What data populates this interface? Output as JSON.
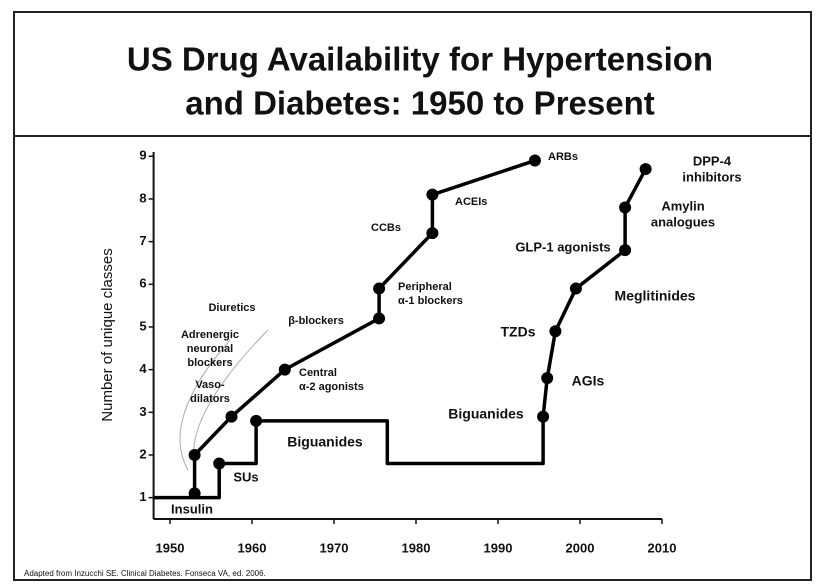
{
  "chart_data": {
    "type": "line",
    "title": [
      "US Drug Availability for Hypertension",
      "and Diabetes: 1950 to Present"
    ],
    "y_label": "Number of unique classes",
    "source": "Adapted from Inzucchi SE. Clinical Diabetes. Fonseca VA, ed. 2006.",
    "xlim": [
      1948,
      2010
    ],
    "xticks": [
      1950,
      1960,
      1970,
      1980,
      1990,
      2000,
      2010
    ],
    "ylim": [
      0.5,
      9.1
    ],
    "yticks": [
      1,
      2,
      3,
      4,
      5,
      6,
      7,
      8,
      9
    ],
    "color": "#000000",
    "series": [
      {
        "x": [
          1953,
          1953,
          1957.5,
          1964,
          1975.5,
          1975.5,
          1982,
          1982,
          1994.5
        ],
        "values": [
          1.1,
          2,
          2.9,
          4,
          5.2,
          5.9,
          7.2,
          8.1,
          8.9
        ],
        "markers": true,
        "line": true
      },
      {
        "x": [
          1948,
          1956,
          1956,
          1960.5,
          1960.5,
          1976.5,
          1976.5,
          1995.5,
          1995.5
        ],
        "values": [
          1,
          1,
          1.8,
          1.8,
          2.8,
          2.8,
          1.8,
          1.8,
          2.9
        ],
        "markers": false,
        "line": true
      },
      {
        "x": [
          1956,
          1960.5
        ],
        "values": [
          1.8,
          2.8
        ],
        "markers": true,
        "line": false
      },
      {
        "x": [
          1995.5,
          1996,
          1997,
          1999.5,
          2005.5,
          2005.5,
          2008
        ],
        "values": [
          2.9,
          3.8,
          4.9,
          5.9,
          6.8,
          7.8,
          8.7
        ],
        "markers": true,
        "line": true
      }
    ],
    "annotations": [
      [
        "ARBs"
      ],
      [
        "ACEIs"
      ],
      [
        "CCBs"
      ],
      [
        "Peripheral",
        "α-1 blockers"
      ],
      [
        "Diuretics"
      ],
      [
        "β-blockers"
      ],
      [
        "Adrenergic",
        "neuronal",
        "blockers"
      ],
      [
        "Central",
        "α-2 agonists"
      ],
      [
        "Vaso-",
        "dilators"
      ],
      [
        "Insulin"
      ],
      [
        "SUs"
      ],
      [
        "Biguanides"
      ],
      [
        "Biguanides"
      ],
      [
        "TZDs"
      ],
      [
        "AGIs"
      ],
      [
        "Meglitinides"
      ],
      [
        "GLP-1 agonists"
      ],
      [
        "Amylin",
        "analogues"
      ],
      [
        "DPP-4",
        "inhibitors"
      ]
    ]
  }
}
